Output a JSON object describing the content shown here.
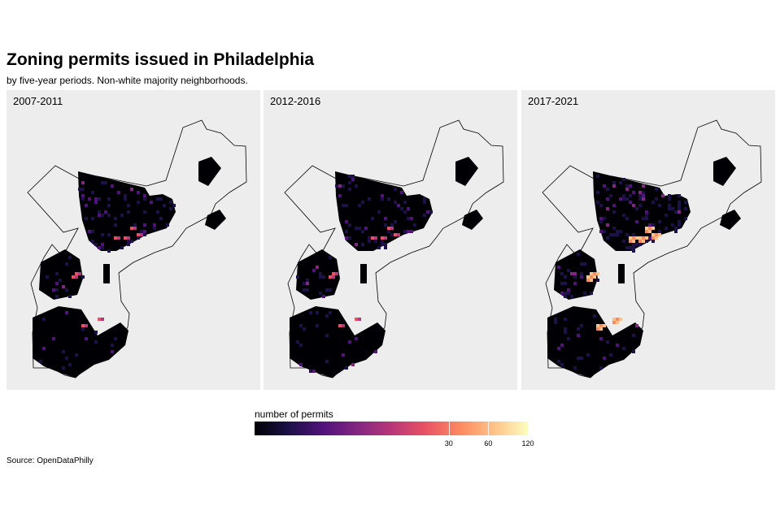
{
  "title": "Zoning permits issued in Philadelphia",
  "subtitle": "by five-year periods. Non-white majority neighborhoods.",
  "caption": "Source: OpenDataPhilly",
  "panels": [
    {
      "label": "2007-2011",
      "hotspots": "low"
    },
    {
      "label": "2012-2016",
      "hotspots": "low"
    },
    {
      "label": "2017-2021",
      "hotspots": "high"
    }
  ],
  "legend": {
    "title": "number of permits",
    "scale": "log",
    "domain": [
      1,
      120
    ],
    "ticks": [
      {
        "value": 30,
        "label": "30"
      },
      {
        "value": 60,
        "label": "60"
      },
      {
        "value": 120,
        "label": "120"
      }
    ],
    "palette": [
      "#000004",
      "#1d1147",
      "#51127c",
      "#822681",
      "#b73779",
      "#e75263",
      "#fc8961",
      "#fec287",
      "#fcfdbf"
    ]
  },
  "colors": {
    "panel_background": "#ededed",
    "outline": "#000000",
    "fill_zero": "#000004"
  }
}
